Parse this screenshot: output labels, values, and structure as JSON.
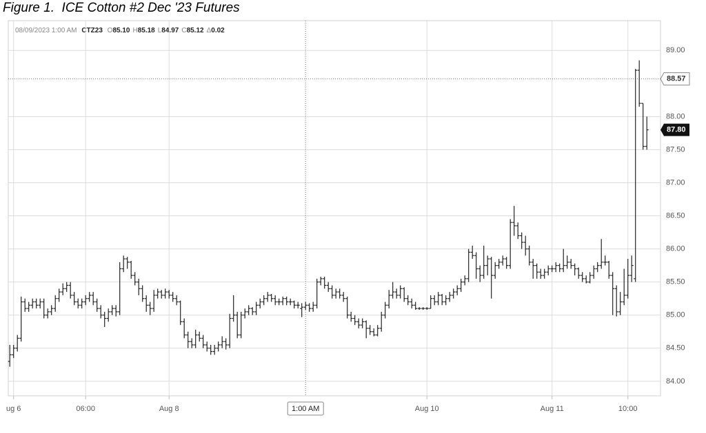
{
  "chart_data": {
    "type": "ohlc",
    "title": "Figure 1.  ICE Cotton #2 Dec '23 Futures",
    "info": {
      "datetime": "08/09/2023 1:00 AM",
      "symbol": "CTZ23",
      "fields": [
        {
          "label": "O",
          "value": "85.10"
        },
        {
          "label": "H",
          "value": "85.18"
        },
        {
          "label": "L",
          "value": "84.97"
        },
        {
          "label": "C",
          "value": "85.12"
        },
        {
          "label": "Δ",
          "value": "0.02"
        }
      ]
    },
    "color": "#222222",
    "xlim": [
      -0.4,
      171.6
    ],
    "xticks": [
      {
        "value": 1,
        "label": "ug 6"
      },
      {
        "value": 20,
        "label": "06:00"
      },
      {
        "value": 42,
        "label": "Aug 8"
      },
      {
        "value": 110,
        "label": "Aug 10"
      },
      {
        "value": 143,
        "label": "Aug 11"
      },
      {
        "value": 163,
        "label": "10:00"
      }
    ],
    "ylim": [
      83.78,
      89.45
    ],
    "yticks": [
      {
        "value": 84,
        "label": "84.00"
      },
      {
        "value": 84.5,
        "label": "84.50"
      },
      {
        "value": 85,
        "label": "85.00"
      },
      {
        "value": 85.5,
        "label": "85.50"
      },
      {
        "value": 86,
        "label": "86.00"
      },
      {
        "value": 86.5,
        "label": "86.50"
      },
      {
        "value": 87,
        "label": "87.00"
      },
      {
        "value": 87.5,
        "label": "87.50"
      },
      {
        "value": 88,
        "label": "88.00"
      },
      {
        "value": 89,
        "label": "89.00"
      }
    ],
    "grid": true,
    "crosshair": {
      "x": {
        "value": 78,
        "label": "1:00 AM"
      },
      "y": 88.57
    },
    "last_price": {
      "value": 87.8,
      "label": "87.80"
    },
    "ohlc": [
      [
        84.3,
        84.55,
        84.22,
        84.4
      ],
      [
        84.4,
        84.55,
        84.35,
        84.5
      ],
      [
        84.5,
        84.7,
        84.45,
        84.65
      ],
      [
        84.65,
        85.28,
        84.6,
        85.2
      ],
      [
        85.2,
        85.25,
        85.05,
        85.1
      ],
      [
        85.1,
        85.2,
        85.05,
        85.15
      ],
      [
        85.15,
        85.25,
        85.1,
        85.2
      ],
      [
        85.2,
        85.25,
        85.1,
        85.15
      ],
      [
        85.15,
        85.25,
        85.1,
        85.2
      ],
      [
        85.2,
        85.25,
        84.95,
        85.0
      ],
      [
        85.0,
        85.1,
        84.95,
        85.05
      ],
      [
        85.05,
        85.15,
        85.0,
        85.1
      ],
      [
        85.1,
        85.3,
        85.05,
        85.25
      ],
      [
        85.25,
        85.4,
        85.2,
        85.35
      ],
      [
        85.35,
        85.48,
        85.3,
        85.4
      ],
      [
        85.4,
        85.5,
        85.35,
        85.45
      ],
      [
        85.45,
        85.5,
        85.25,
        85.3
      ],
      [
        85.3,
        85.35,
        85.15,
        85.2
      ],
      [
        85.2,
        85.25,
        85.1,
        85.15
      ],
      [
        85.15,
        85.25,
        85.1,
        85.2
      ],
      [
        85.2,
        85.3,
        85.15,
        85.25
      ],
      [
        85.25,
        85.35,
        85.2,
        85.3
      ],
      [
        85.3,
        85.35,
        85.15,
        85.2
      ],
      [
        85.2,
        85.25,
        85.05,
        85.1
      ],
      [
        85.1,
        85.15,
        84.95,
        85.0
      ],
      [
        85.0,
        85.05,
        84.82,
        84.95
      ],
      [
        84.95,
        85.1,
        84.9,
        85.05
      ],
      [
        85.05,
        85.15,
        85.0,
        85.1
      ],
      [
        85.1,
        85.15,
        84.98,
        85.05
      ],
      [
        85.05,
        85.8,
        85.0,
        85.7
      ],
      [
        85.7,
        85.9,
        85.65,
        85.85
      ],
      [
        85.85,
        85.88,
        85.7,
        85.8
      ],
      [
        85.8,
        85.82,
        85.55,
        85.6
      ],
      [
        85.6,
        85.65,
        85.45,
        85.5
      ],
      [
        85.5,
        85.55,
        85.3,
        85.4
      ],
      [
        85.4,
        85.45,
        85.2,
        85.25
      ],
      [
        85.25,
        85.3,
        85.05,
        85.15
      ],
      [
        85.15,
        85.2,
        85.0,
        85.1
      ],
      [
        85.1,
        85.38,
        85.05,
        85.3
      ],
      [
        85.3,
        85.4,
        85.25,
        85.35
      ],
      [
        85.35,
        85.38,
        85.25,
        85.3
      ],
      [
        85.3,
        85.4,
        85.25,
        85.35
      ],
      [
        85.35,
        85.38,
        85.25,
        85.3
      ],
      [
        85.3,
        85.35,
        85.2,
        85.25
      ],
      [
        85.25,
        85.3,
        85.15,
        85.2
      ],
      [
        85.2,
        85.22,
        84.85,
        84.9
      ],
      [
        84.9,
        84.95,
        84.65,
        84.7
      ],
      [
        84.7,
        84.75,
        84.5,
        84.6
      ],
      [
        84.6,
        84.65,
        84.5,
        84.55
      ],
      [
        84.55,
        84.78,
        84.5,
        84.7
      ],
      [
        84.7,
        84.75,
        84.6,
        84.65
      ],
      [
        84.65,
        84.7,
        84.5,
        84.55
      ],
      [
        84.55,
        84.6,
        84.45,
        84.5
      ],
      [
        84.5,
        84.55,
        84.4,
        84.45
      ],
      [
        84.45,
        84.55,
        84.4,
        84.5
      ],
      [
        84.5,
        84.6,
        84.45,
        84.55
      ],
      [
        84.55,
        84.68,
        84.5,
        84.6
      ],
      [
        84.6,
        84.65,
        84.48,
        84.55
      ],
      [
        84.55,
        85.02,
        84.5,
        84.95
      ],
      [
        84.95,
        85.3,
        84.9,
        85.0
      ],
      [
        85.0,
        85.05,
        84.65,
        84.7
      ],
      [
        84.7,
        85.05,
        84.65,
        85.0
      ],
      [
        85.0,
        85.1,
        84.95,
        85.05
      ],
      [
        85.05,
        85.15,
        85.0,
        85.1
      ],
      [
        85.1,
        85.12,
        85.0,
        85.05
      ],
      [
        85.05,
        85.2,
        85.0,
        85.15
      ],
      [
        85.15,
        85.25,
        85.1,
        85.2
      ],
      [
        85.2,
        85.3,
        85.15,
        85.25
      ],
      [
        85.25,
        85.35,
        85.2,
        85.3
      ],
      [
        85.3,
        85.32,
        85.2,
        85.25
      ],
      [
        85.25,
        85.3,
        85.15,
        85.2
      ],
      [
        85.2,
        85.25,
        85.15,
        85.2
      ],
      [
        85.2,
        85.28,
        85.15,
        85.25
      ],
      [
        85.25,
        85.28,
        85.15,
        85.2
      ],
      [
        85.2,
        85.25,
        85.15,
        85.2
      ],
      [
        85.2,
        85.22,
        85.1,
        85.15
      ],
      [
        85.15,
        85.2,
        85.1,
        85.15
      ],
      [
        85.1,
        85.18,
        84.97,
        85.12
      ],
      [
        85.12,
        85.2,
        85.08,
        85.15
      ],
      [
        85.15,
        85.18,
        85.05,
        85.1
      ],
      [
        85.1,
        85.2,
        85.05,
        85.15
      ],
      [
        85.15,
        85.55,
        85.1,
        85.5
      ],
      [
        85.5,
        85.58,
        85.45,
        85.55
      ],
      [
        85.55,
        85.58,
        85.4,
        85.45
      ],
      [
        85.45,
        85.5,
        85.35,
        85.4
      ],
      [
        85.4,
        85.45,
        85.25,
        85.3
      ],
      [
        85.3,
        85.4,
        85.25,
        85.35
      ],
      [
        85.35,
        85.4,
        85.25,
        85.3
      ],
      [
        85.3,
        85.35,
        85.2,
        85.25
      ],
      [
        85.25,
        85.28,
        84.95,
        85.0
      ],
      [
        85.0,
        85.05,
        84.9,
        84.95
      ],
      [
        84.95,
        85.0,
        84.85,
        84.9
      ],
      [
        84.9,
        84.95,
        84.8,
        84.85
      ],
      [
        84.85,
        84.95,
        84.8,
        84.9
      ],
      [
        84.9,
        84.92,
        84.65,
        84.8
      ],
      [
        84.8,
        84.85,
        84.7,
        84.75
      ],
      [
        84.75,
        84.8,
        84.68,
        84.7
      ],
      [
        84.7,
        84.85,
        84.68,
        84.8
      ],
      [
        84.8,
        85.05,
        84.75,
        85.0
      ],
      [
        85.0,
        85.2,
        84.95,
        85.15
      ],
      [
        85.15,
        85.38,
        85.1,
        85.3
      ],
      [
        85.3,
        85.5,
        85.25,
        85.35
      ],
      [
        85.35,
        85.4,
        85.25,
        85.3
      ],
      [
        85.3,
        85.45,
        85.25,
        85.4
      ],
      [
        85.4,
        85.42,
        85.2,
        85.25
      ],
      [
        85.25,
        85.3,
        85.15,
        85.2
      ],
      [
        85.2,
        85.25,
        85.1,
        85.15
      ],
      [
        85.15,
        85.2,
        85.08,
        85.1
      ],
      [
        85.1,
        85.12,
        85.08,
        85.1
      ],
      [
        85.1,
        85.12,
        85.08,
        85.1
      ],
      [
        85.1,
        85.12,
        85.08,
        85.1
      ],
      [
        85.1,
        85.3,
        85.1,
        85.25
      ],
      [
        85.25,
        85.3,
        85.15,
        85.2
      ],
      [
        85.2,
        85.35,
        85.15,
        85.3
      ],
      [
        85.3,
        85.32,
        85.15,
        85.2
      ],
      [
        85.2,
        85.3,
        85.15,
        85.25
      ],
      [
        85.25,
        85.35,
        85.2,
        85.3
      ],
      [
        85.3,
        85.4,
        85.25,
        85.35
      ],
      [
        85.35,
        85.45,
        85.3,
        85.4
      ],
      [
        85.4,
        85.55,
        85.35,
        85.5
      ],
      [
        85.5,
        85.6,
        85.45,
        85.55
      ],
      [
        85.55,
        86.0,
        85.5,
        85.95
      ],
      [
        85.95,
        86.05,
        85.85,
        85.9
      ],
      [
        85.9,
        85.95,
        85.55,
        85.7
      ],
      [
        85.7,
        85.75,
        85.5,
        85.6
      ],
      [
        85.6,
        86.05,
        85.55,
        85.75
      ],
      [
        85.75,
        85.9,
        85.6,
        85.85
      ],
      [
        85.85,
        85.88,
        85.25,
        85.6
      ],
      [
        85.6,
        85.8,
        85.55,
        85.75
      ],
      [
        85.75,
        85.85,
        85.7,
        85.8
      ],
      [
        85.8,
        85.9,
        85.75,
        85.85
      ],
      [
        85.85,
        85.88,
        85.7,
        85.75
      ],
      [
        85.75,
        86.45,
        85.7,
        86.4
      ],
      [
        86.4,
        86.65,
        86.2,
        86.35
      ],
      [
        86.35,
        86.4,
        86.15,
        86.2
      ],
      [
        86.2,
        86.25,
        86.0,
        86.1
      ],
      [
        86.1,
        86.2,
        85.9,
        86.0
      ],
      [
        86.0,
        86.05,
        85.75,
        85.8
      ],
      [
        85.8,
        85.85,
        85.55,
        85.75
      ],
      [
        85.75,
        85.78,
        85.55,
        85.65
      ],
      [
        85.65,
        85.7,
        85.55,
        85.6
      ],
      [
        85.6,
        85.7,
        85.55,
        85.65
      ],
      [
        85.65,
        85.75,
        85.6,
        85.7
      ],
      [
        85.7,
        85.75,
        85.65,
        85.7
      ],
      [
        85.7,
        85.8,
        85.65,
        85.75
      ],
      [
        85.75,
        85.78,
        85.65,
        85.7
      ],
      [
        85.7,
        86.0,
        85.65,
        85.75
      ],
      [
        85.75,
        85.9,
        85.7,
        85.8
      ],
      [
        85.8,
        85.85,
        85.7,
        85.75
      ],
      [
        85.75,
        85.78,
        85.6,
        85.7
      ],
      [
        85.7,
        85.72,
        85.55,
        85.6
      ],
      [
        85.6,
        85.65,
        85.5,
        85.55
      ],
      [
        85.55,
        85.6,
        85.48,
        85.5
      ],
      [
        85.5,
        85.65,
        85.48,
        85.6
      ],
      [
        85.6,
        85.75,
        85.55,
        85.7
      ],
      [
        85.7,
        85.8,
        85.65,
        85.75
      ],
      [
        85.75,
        86.15,
        85.7,
        85.8
      ],
      [
        85.8,
        85.9,
        85.75,
        85.8
      ],
      [
        85.8,
        85.82,
        85.55,
        85.6
      ],
      [
        85.6,
        85.65,
        85.0,
        85.4
      ],
      [
        85.4,
        85.45,
        84.98,
        85.05
      ],
      [
        85.05,
        85.35,
        85.0,
        85.2
      ],
      [
        85.2,
        85.7,
        85.15,
        85.3
      ],
      [
        85.3,
        85.85,
        85.25,
        85.6
      ],
      [
        85.6,
        85.9,
        85.5,
        85.75
      ],
      [
        85.55,
        88.72,
        85.5,
        88.7
      ],
      [
        88.7,
        88.85,
        88.15,
        88.2
      ],
      [
        88.2,
        88.2,
        87.5,
        87.55
      ],
      [
        87.55,
        88.0,
        87.5,
        87.8
      ]
    ]
  }
}
